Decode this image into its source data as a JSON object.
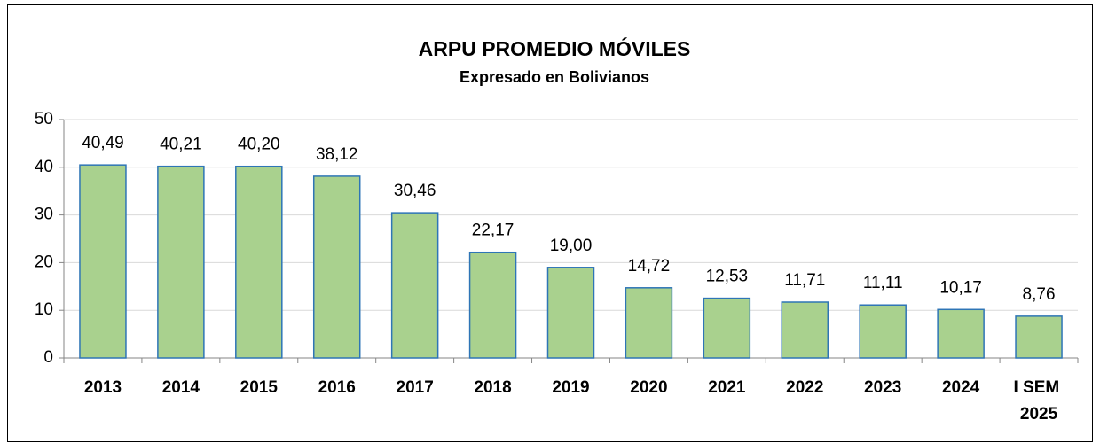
{
  "chart_data": {
    "type": "bar",
    "title": "ARPU PROMEDIO MÓVILES",
    "subtitle": "Expresado en Bolivianos",
    "categories": [
      "2013",
      "2014",
      "2015",
      "2016",
      "2017",
      "2018",
      "2019",
      "2020",
      "2021",
      "2022",
      "2023",
      "2024",
      "I SEM 2025"
    ],
    "values": [
      40.49,
      40.21,
      40.2,
      38.12,
      30.46,
      22.17,
      19.0,
      14.72,
      12.53,
      11.71,
      11.11,
      10.17,
      8.76
    ],
    "value_labels": [
      "40,49",
      "40,21",
      "40,20",
      "38,12",
      "30,46",
      "22,17",
      "19,00",
      "14,72",
      "12,53",
      "11,71",
      "11,11",
      "10,17",
      "8,76"
    ],
    "color": "#a9d18e",
    "edge_color": "#2e75b6",
    "ylim": [
      0,
      50
    ],
    "yticks": [
      0,
      10,
      20,
      30,
      40,
      50
    ],
    "grid": true
  }
}
